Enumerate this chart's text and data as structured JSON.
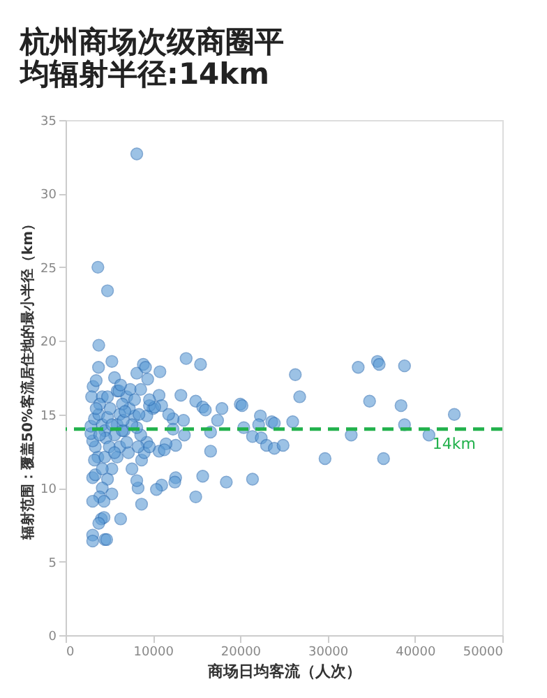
{
  "chart_data": {
    "type": "scatter",
    "title": "杭州商场次级商圈平均辐射半径:14km",
    "xlabel": "商场日均客流（人次）",
    "ylabel": "辐射范围：覆盖50%客流居住地的最小半径（km）",
    "xlim": [
      0,
      50000
    ],
    "xticks": [
      0,
      10000,
      20000,
      30000,
      40000,
      50000
    ],
    "ylim": [
      0,
      35
    ],
    "yticks": [
      0,
      5,
      10,
      15,
      20,
      25,
      30,
      35
    ],
    "grid": false,
    "marker": "circle",
    "ref_lines": [
      {
        "axis": "y",
        "value": 14,
        "label": "14km",
        "color": "#22b14c",
        "line_style": "dashed"
      }
    ],
    "series": [
      {
        "color": "#5b9bd5",
        "x": [
          8150,
          3700,
          4800,
          3800,
          3770,
          5300,
          8150,
          8900,
          9150,
          10800,
          13800,
          15450,
          9400,
          5600,
          3150,
          3500,
          2980,
          4200,
          5900,
          7000,
          7400,
          8600,
          10700,
          13200,
          14900,
          15700,
          16000,
          17900,
          20000,
          20200,
          22300,
          17400,
          13500,
          12300,
          11800,
          10000,
          9300,
          9600,
          20400,
          22100,
          23600,
          23900,
          26000,
          26300,
          26800,
          16600,
          13600,
          12300,
          21400,
          22400,
          23000,
          23900,
          24900,
          32700,
          33500,
          34800,
          35700,
          35900,
          38800,
          38400,
          38800,
          41600,
          44500,
          29700,
          36400,
          16600,
          12600,
          11500,
          10700,
          11300,
          12600,
          12500,
          11000,
          10400,
          15700,
          18400,
          21400,
          14900,
          8700,
          6300,
          8300,
          8150,
          7600,
          7200,
          8700,
          9000,
          9300,
          9600,
          8600,
          8150,
          7900,
          7300,
          6500,
          6200,
          5900,
          5600,
          6200,
          5900,
          5300,
          4800,
          5300,
          4200,
          3900,
          4400,
          3100,
          3100,
          3400,
          3700,
          3300,
          3400,
          3100,
          2900,
          2900,
          3300,
          3800,
          4200,
          4500,
          4600,
          3900,
          4800,
          5100,
          3900,
          3500,
          4800,
          4500,
          4200,
          5000,
          4100,
          4400,
          3800,
          3100,
          3100,
          4500,
          4700,
          6700,
          7000,
          7600,
          8400,
          11000,
          10200,
          9600,
          7900,
          8300,
          5600,
          5300,
          6500,
          6600,
          6800,
          6100,
          6300
        ],
        "values": [
          32.7,
          25.0,
          23.4,
          19.7,
          18.2,
          18.6,
          17.8,
          18.4,
          18.2,
          17.9,
          18.8,
          18.4,
          17.4,
          17.5,
          16.9,
          17.3,
          16.2,
          16.2,
          16.6,
          16.2,
          16.7,
          16.7,
          16.3,
          16.3,
          15.9,
          15.5,
          15.3,
          15.4,
          15.7,
          15.6,
          14.9,
          14.6,
          14.6,
          14.7,
          15.0,
          15.4,
          14.9,
          15.6,
          14.1,
          14.3,
          14.5,
          14.4,
          14.5,
          17.7,
          16.2,
          13.8,
          13.6,
          14.0,
          13.5,
          13.4,
          12.9,
          12.7,
          12.9,
          13.6,
          18.2,
          15.9,
          18.6,
          18.4,
          18.3,
          15.6,
          14.3,
          13.6,
          15.0,
          12.0,
          12.0,
          12.5,
          12.9,
          13.0,
          12.5,
          12.6,
          10.7,
          10.4,
          10.2,
          9.9,
          10.8,
          10.4,
          10.6,
          9.4,
          8.9,
          7.9,
          10.0,
          10.5,
          11.3,
          12.4,
          11.9,
          12.4,
          13.1,
          12.8,
          13.6,
          14.1,
          14.9,
          15.4,
          15.7,
          15.0,
          14.3,
          13.6,
          12.8,
          12.1,
          11.3,
          10.6,
          9.6,
          10.0,
          9.4,
          9.1,
          9.1,
          10.7,
          10.9,
          12.1,
          11.9,
          12.8,
          13.2,
          13.7,
          14.2,
          14.7,
          15.0,
          14.3,
          13.9,
          13.4,
          13.6,
          14.8,
          15.4,
          15.7,
          15.4,
          16.2,
          12.1,
          11.3,
          12.8,
          7.9,
          8.0,
          7.6,
          6.8,
          6.4,
          6.5,
          6.5,
          13.9,
          13.1,
          14.3,
          15.0,
          15.6,
          15.5,
          16.0,
          16.0,
          12.8,
          12.4,
          14.3,
          13.9,
          14.6,
          15.2,
          16.6,
          17.0
        ]
      }
    ]
  }
}
